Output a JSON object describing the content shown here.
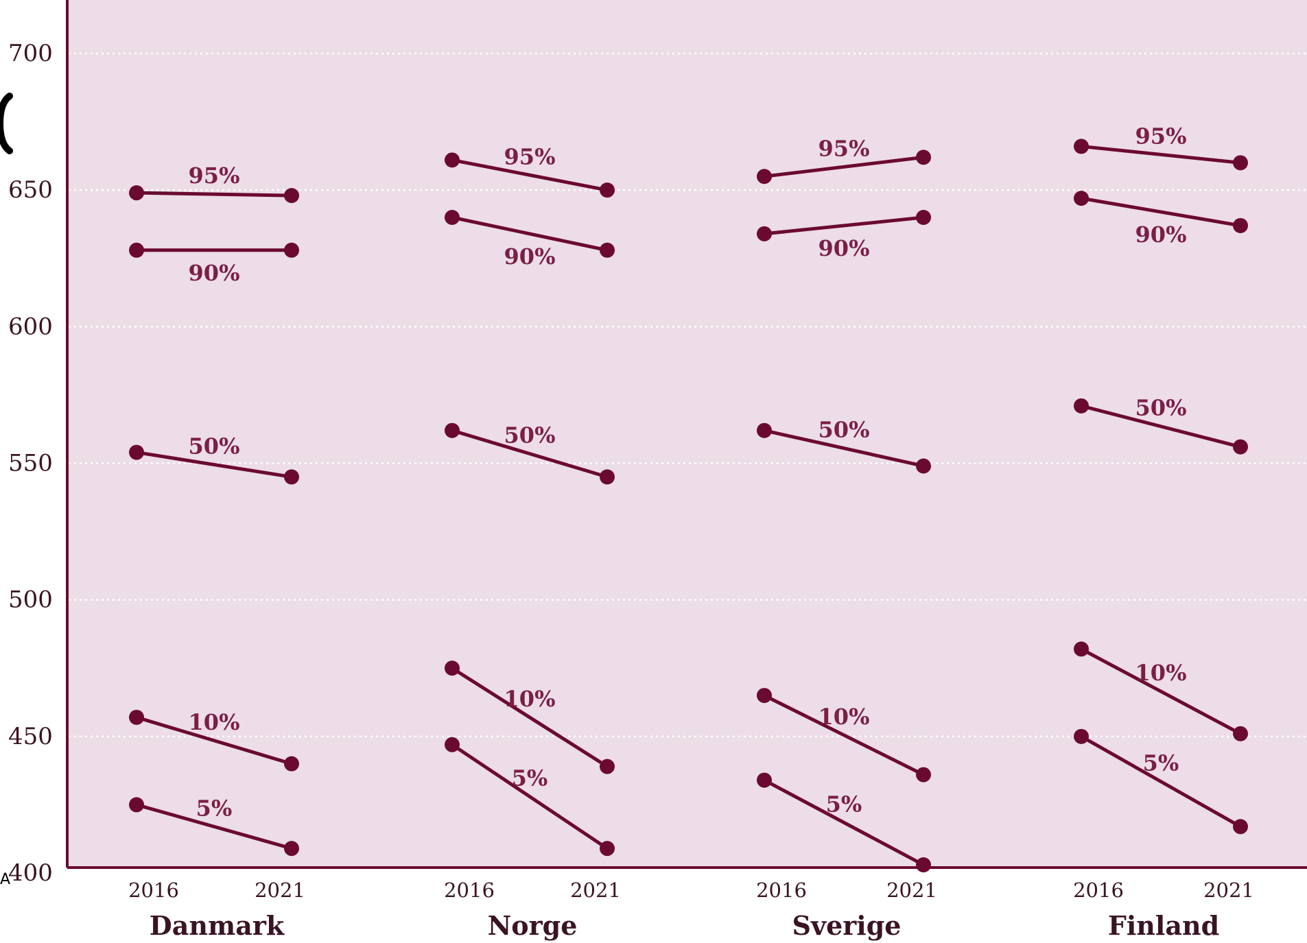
{
  "chart_data": {
    "type": "line",
    "ylim": [
      400,
      720
    ],
    "yticks": [
      "400",
      "450",
      "500",
      "550",
      "600",
      "650",
      "700"
    ],
    "grid": true,
    "colors": {
      "background": "#ecdde6",
      "line": "#6b0a30",
      "label": "#7a1f45",
      "axis": "#6b0a30",
      "grid": "#ffffff"
    },
    "stray_mark": "A",
    "groups": [
      {
        "name": "Danmark",
        "x": [
          "2016",
          "2021"
        ],
        "series": [
          {
            "name": "95%",
            "values": [
              649,
              648
            ]
          },
          {
            "name": "90%",
            "values": [
              628,
              628
            ]
          },
          {
            "name": "50%",
            "values": [
              554,
              545
            ]
          },
          {
            "name": "10%",
            "values": [
              457,
              440
            ]
          },
          {
            "name": "5%",
            "values": [
              425,
              409
            ]
          }
        ]
      },
      {
        "name": "Norge",
        "x": [
          "2016",
          "2021"
        ],
        "series": [
          {
            "name": "95%",
            "values": [
              661,
              650
            ]
          },
          {
            "name": "90%",
            "values": [
              640,
              628
            ]
          },
          {
            "name": "50%",
            "values": [
              562,
              545
            ]
          },
          {
            "name": "10%",
            "values": [
              475,
              439
            ]
          },
          {
            "name": "5%",
            "values": [
              447,
              409
            ]
          }
        ]
      },
      {
        "name": "Sverige",
        "x": [
          "2016",
          "2021"
        ],
        "series": [
          {
            "name": "95%",
            "values": [
              655,
              662
            ]
          },
          {
            "name": "90%",
            "values": [
              634,
              640
            ]
          },
          {
            "name": "50%",
            "values": [
              562,
              549
            ]
          },
          {
            "name": "10%",
            "values": [
              465,
              436
            ]
          },
          {
            "name": "5%",
            "values": [
              434,
              403
            ]
          }
        ]
      },
      {
        "name": "Finland",
        "x": [
          "2016",
          "2021"
        ],
        "series": [
          {
            "name": "95%",
            "values": [
              666,
              660
            ]
          },
          {
            "name": "90%",
            "values": [
              647,
              637
            ]
          },
          {
            "name": "50%",
            "values": [
              571,
              556
            ]
          },
          {
            "name": "10%",
            "values": [
              482,
              451
            ]
          },
          {
            "name": "5%",
            "values": [
              450,
              417
            ]
          }
        ]
      }
    ]
  }
}
